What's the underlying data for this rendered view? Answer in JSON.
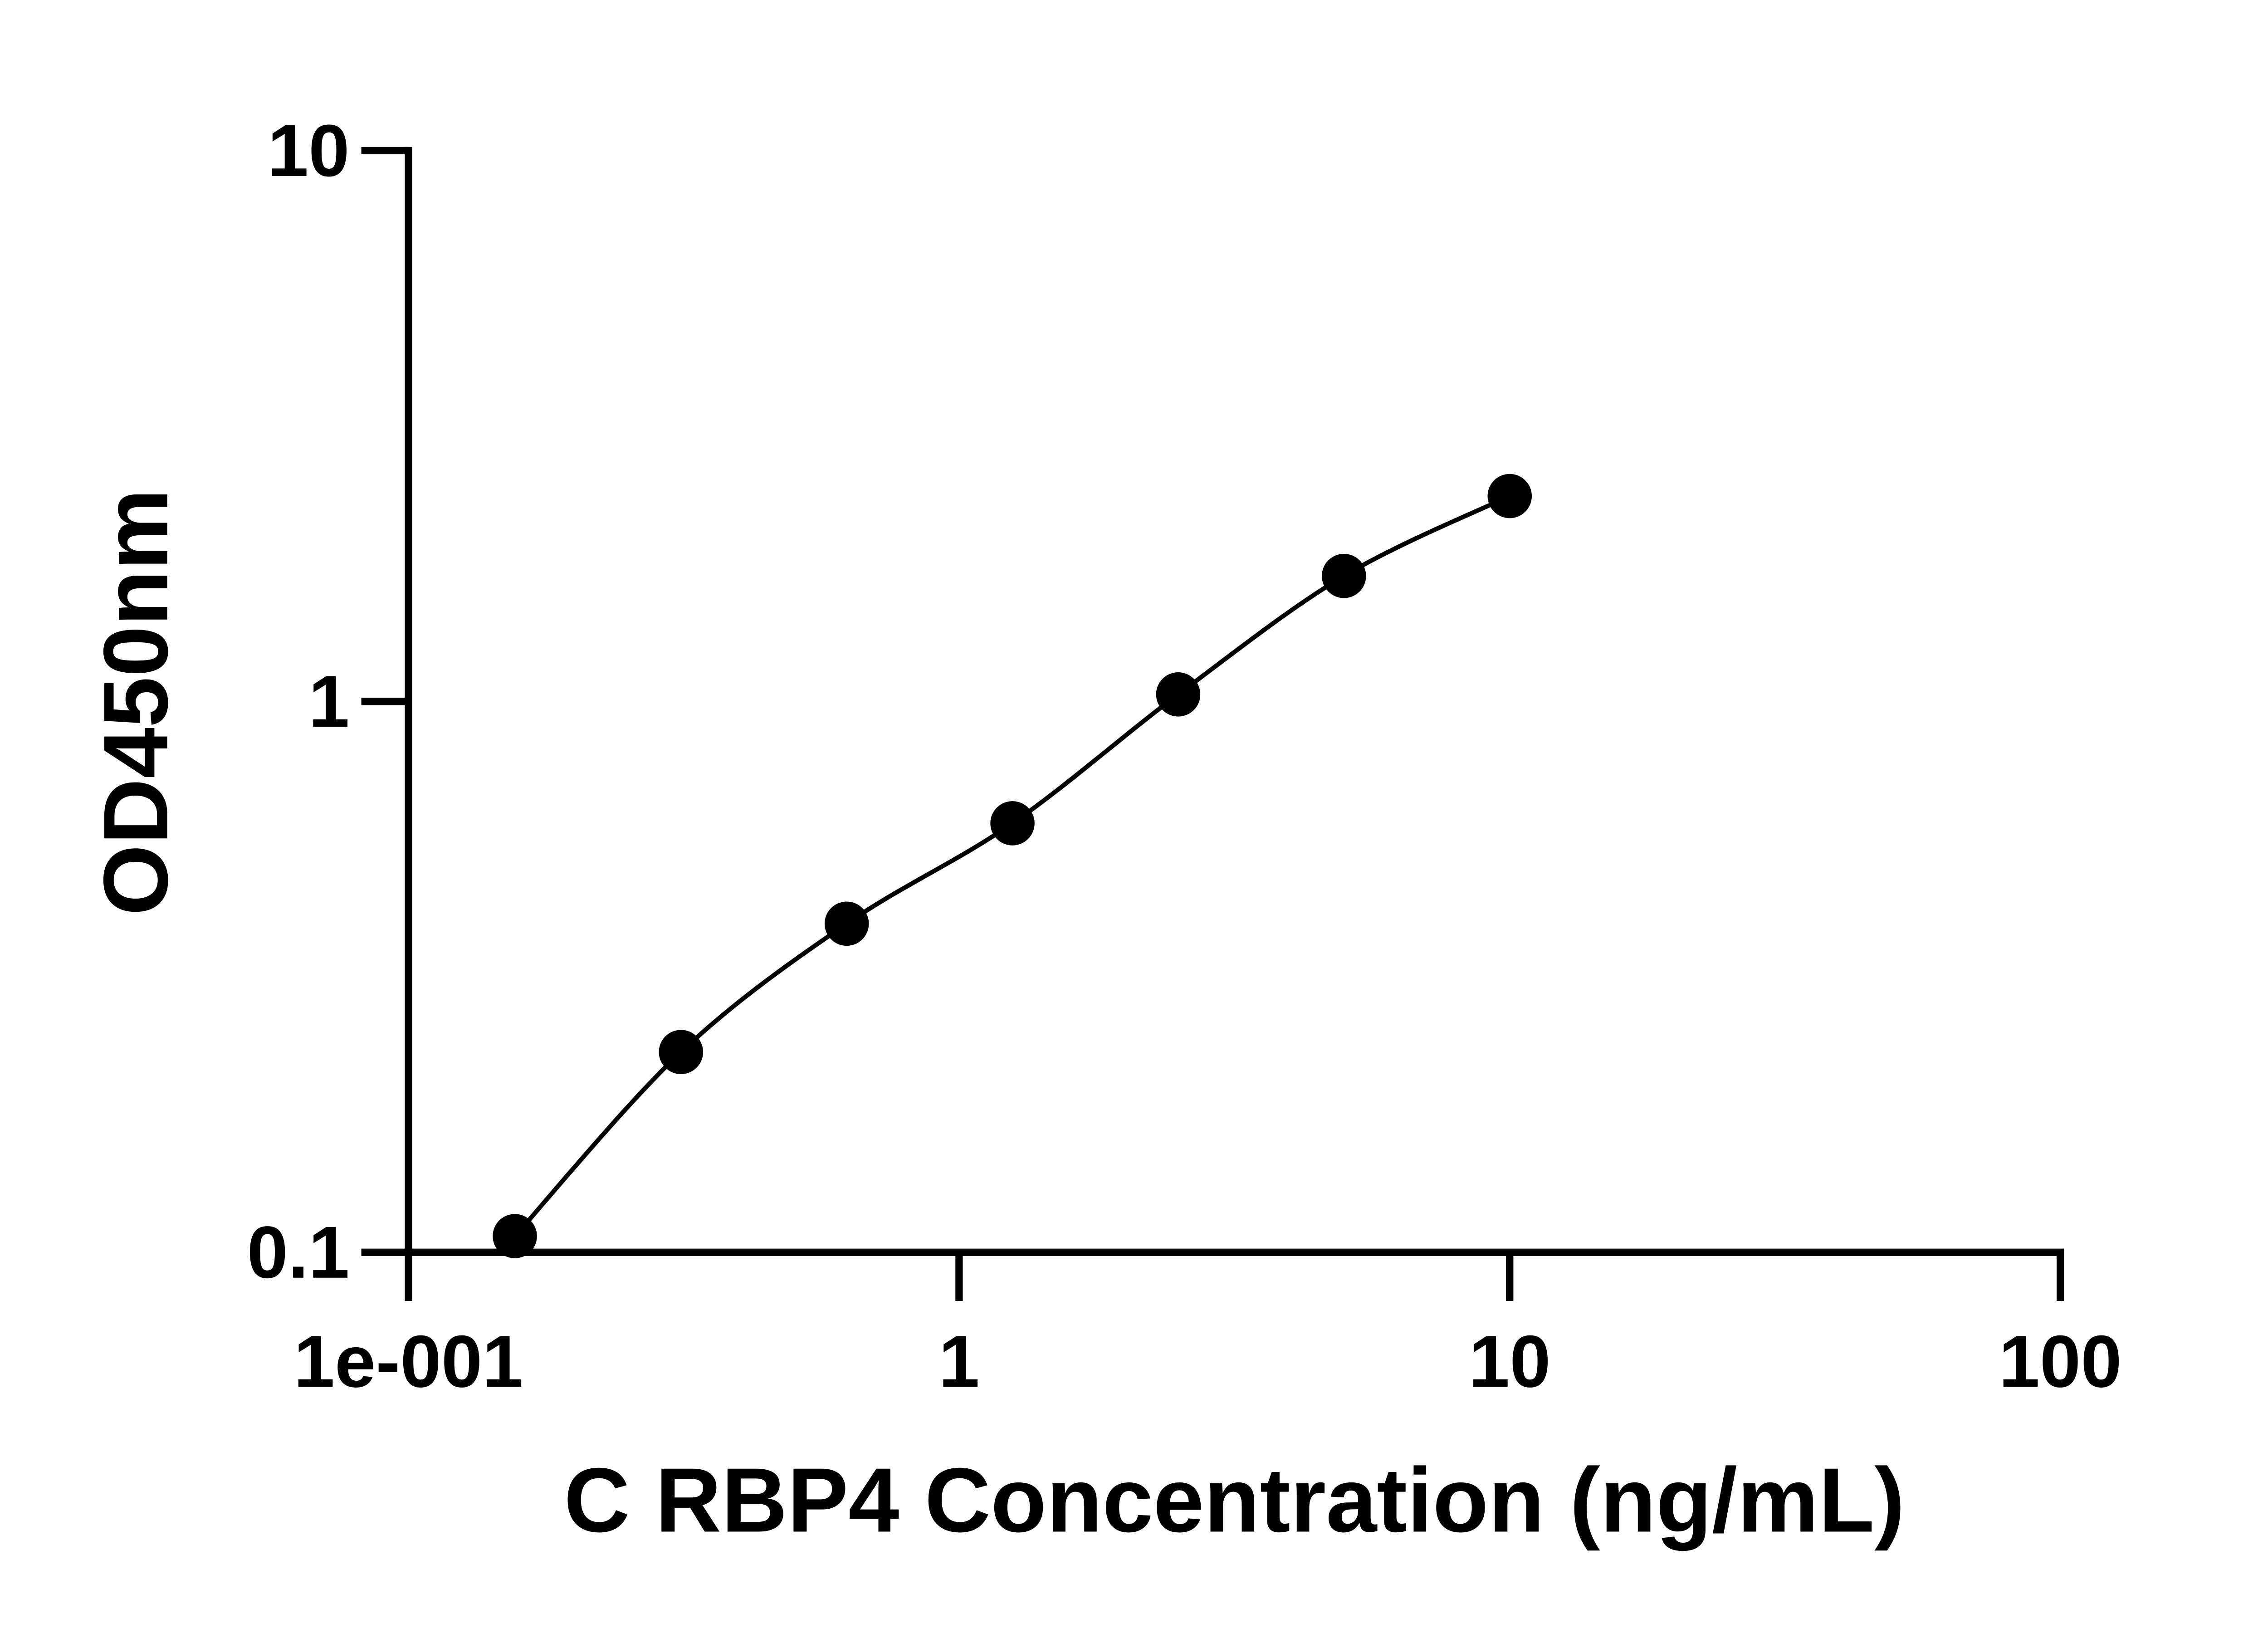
{
  "chart_data": {
    "type": "scatter",
    "x_label": "C RBP4 Concentration (ng/mL)",
    "y_label": "OD450nm",
    "x_log": true,
    "y_log": true,
    "xlim": [
      0.1,
      100
    ],
    "ylim": [
      0.1,
      10
    ],
    "xticks": [
      {
        "value": 0.1,
        "label": "1e-001"
      },
      1,
      10,
      100
    ],
    "yticks": [
      0.1,
      1,
      10
    ],
    "series": [
      {
        "color": "#000000",
        "line": true,
        "x": [
          0.156,
          0.3125,
          0.625,
          1.25,
          2.5,
          5,
          10
        ],
        "values": [
          0.107,
          0.231,
          0.395,
          0.601,
          1.03,
          1.69,
          2.36
        ]
      }
    ]
  }
}
